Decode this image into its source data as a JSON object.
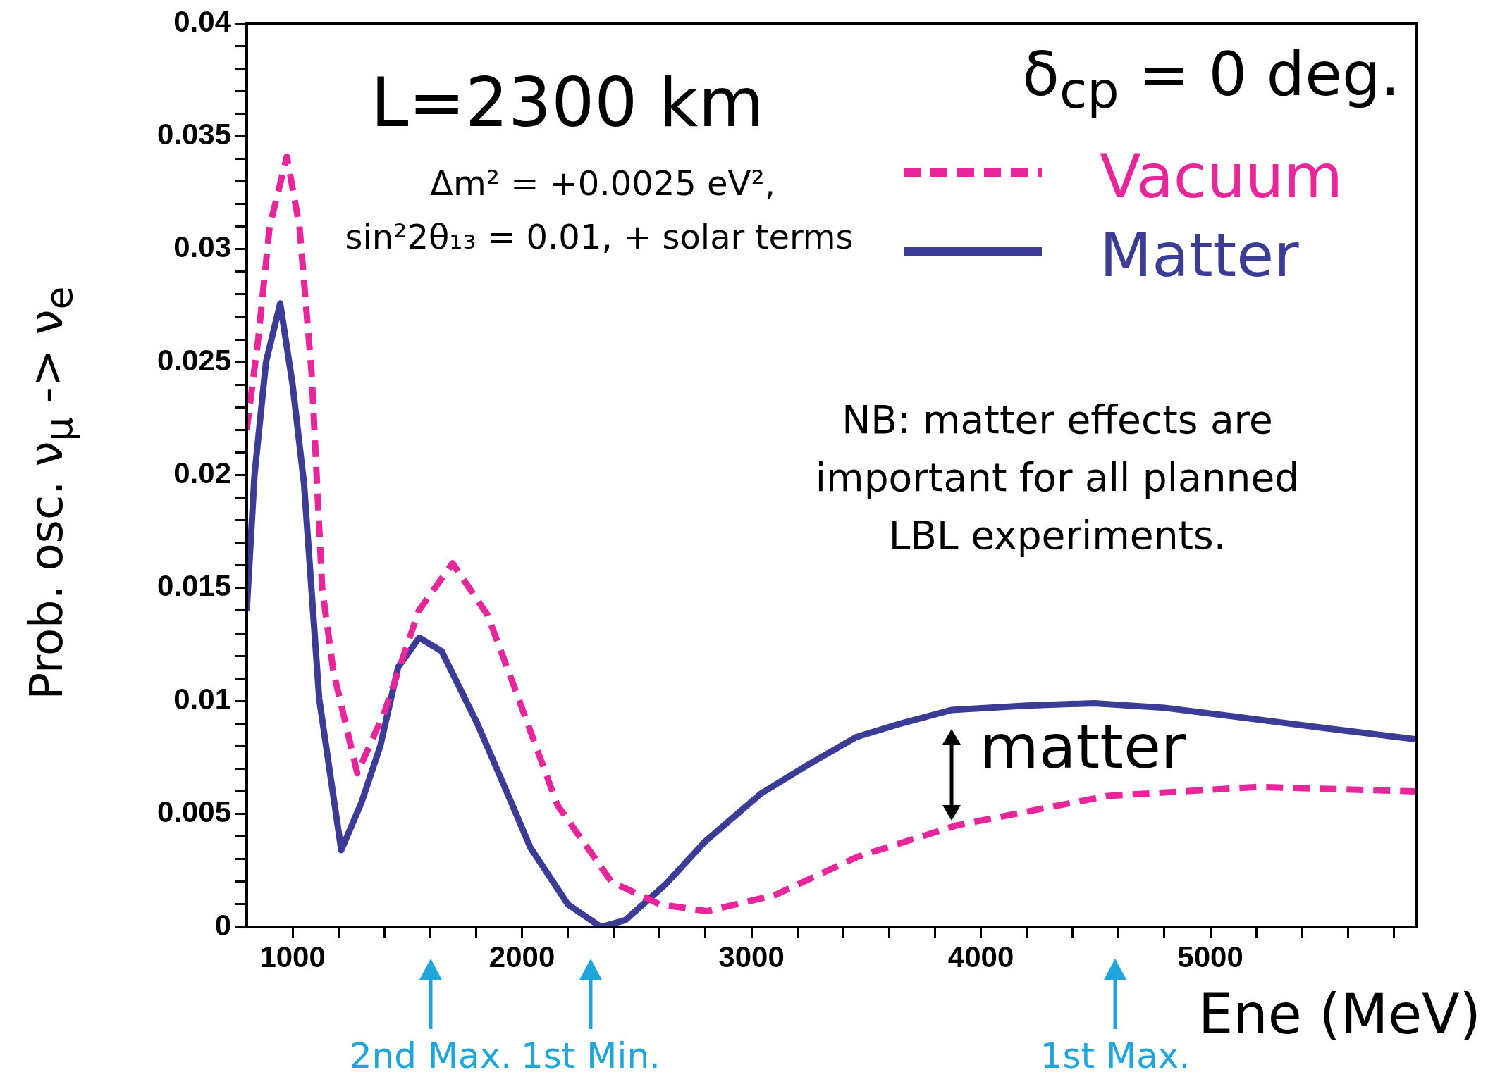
{
  "chart_data": {
    "type": "line",
    "xlabel": "Ene (MeV)",
    "ylabel": "Prob. osc. ν$_{μ}$ -> ν$_{e}$",
    "xlim": [
      800,
      5900
    ],
    "xticks": [
      1000,
      {
        "value": 1200,
        "label": null
      },
      {
        "value": 1400,
        "label": null
      },
      {
        "value": 1600,
        "label": null
      },
      {
        "value": 1800,
        "label": null
      },
      2000,
      {
        "value": 2200,
        "label": null
      },
      {
        "value": 2400,
        "label": null
      },
      {
        "value": 2600,
        "label": null
      },
      {
        "value": 2800,
        "label": null
      },
      3000,
      {
        "value": 3200,
        "label": null
      },
      {
        "value": 3400,
        "label": null
      },
      {
        "value": 3600,
        "label": null
      },
      {
        "value": 3800,
        "label": null
      },
      4000,
      {
        "value": 4200,
        "label": null
      },
      {
        "value": 4400,
        "label": null
      },
      {
        "value": 4600,
        "label": null
      },
      {
        "value": 4800,
        "label": null
      },
      5000,
      {
        "value": 5200,
        "label": null
      },
      {
        "value": 5400,
        "label": null
      },
      {
        "value": 5600,
        "label": null
      },
      {
        "value": 5800,
        "label": null
      }
    ],
    "ylim": [
      0,
      0.04
    ],
    "yticks": [
      0,
      {
        "value": 0.001,
        "label": null
      },
      {
        "value": 0.002,
        "label": null
      },
      {
        "value": 0.003,
        "label": null
      },
      {
        "value": 0.004,
        "label": null
      },
      0.005,
      {
        "value": 0.006,
        "label": null
      },
      {
        "value": 0.007,
        "label": null
      },
      {
        "value": 0.008,
        "label": null
      },
      {
        "value": 0.009,
        "label": null
      },
      0.01,
      {
        "value": 0.011,
        "label": null
      },
      {
        "value": 0.012,
        "label": null
      },
      {
        "value": 0.013,
        "label": null
      },
      {
        "value": 0.014,
        "label": null
      },
      0.015,
      {
        "value": 0.016,
        "label": null
      },
      {
        "value": 0.017,
        "label": null
      },
      {
        "value": 0.018,
        "label": null
      },
      {
        "value": 0.019,
        "label": null
      },
      0.02,
      {
        "value": 0.021,
        "label": null
      },
      {
        "value": 0.022,
        "label": null
      },
      {
        "value": 0.023,
        "label": null
      },
      {
        "value": 0.024,
        "label": null
      },
      0.025,
      {
        "value": 0.026,
        "label": null
      },
      {
        "value": 0.027,
        "label": null
      },
      {
        "value": 0.028,
        "label": null
      },
      {
        "value": 0.029,
        "label": null
      },
      0.03,
      {
        "value": 0.031,
        "label": null
      },
      {
        "value": 0.032,
        "label": null
      },
      {
        "value": 0.033,
        "label": null
      },
      {
        "value": 0.034,
        "label": null
      },
      0.035,
      {
        "value": 0.036,
        "label": null
      },
      {
        "value": 0.037,
        "label": null
      },
      {
        "value": 0.038,
        "label": null
      },
      {
        "value": 0.039,
        "label": null
      },
      0.04
    ],
    "grid": false,
    "legend": "top right",
    "marker": "none",
    "series": [
      {
        "name": "Vacuum",
        "color": "#e8259a",
        "line_style": "dashed",
        "x": [
          800,
          850,
          900,
          975,
          1030,
          1083,
          1129,
          1178,
          1282,
          1400,
          1550,
          1697,
          1850,
          1967,
          2154,
          2390,
          2600,
          2805,
          3100,
          3461,
          3896,
          4552,
          5208,
          5900
        ],
        "values": [
          0.022,
          0.026,
          0.031,
          0.0341,
          0.031,
          0.0245,
          0.015,
          0.0113,
          0.0068,
          0.0095,
          0.014,
          0.0161,
          0.0138,
          0.0106,
          0.0054,
          0.002,
          0.001,
          0.0007,
          0.0014,
          0.0031,
          0.0045,
          0.0058,
          0.0062,
          0.006
        ]
      },
      {
        "name": "Matter",
        "color": "#3a3c96",
        "line_style": "solid",
        "x": [
          800,
          834,
          884,
          946,
          1000,
          1050,
          1116,
          1212,
          1300,
          1382,
          1460,
          1552,
          1650,
          1805,
          1920,
          2037,
          2200,
          2344,
          2450,
          2627,
          2800,
          3041,
          3250,
          3456,
          3650,
          3871,
          4200,
          4494,
          4800,
          5116,
          5500,
          5900
        ],
        "values": [
          0.014,
          0.02,
          0.025,
          0.0276,
          0.024,
          0.0196,
          0.0101,
          0.0034,
          0.0055,
          0.008,
          0.0115,
          0.0128,
          0.0122,
          0.009,
          0.0063,
          0.0035,
          0.001,
          0,
          0.0003,
          0.0019,
          0.0038,
          0.0059,
          0.0072,
          0.0084,
          0.009,
          0.0096,
          0.0098,
          0.0099,
          0.0097,
          0.0093,
          0.0088,
          0.0083
        ]
      }
    ],
    "annotations": [
      "L=2300 km",
      "δ$_{cp}$ = 0 deg.",
      "Δm² = +0.0025 eV²,",
      "sin²2θ₁₃ = 0.01, + solar terms",
      "NB: matter effects are important for all planned LBL experiments.",
      "matter",
      "2nd Max.",
      "1st Min.",
      "1st Max."
    ]
  }
}
